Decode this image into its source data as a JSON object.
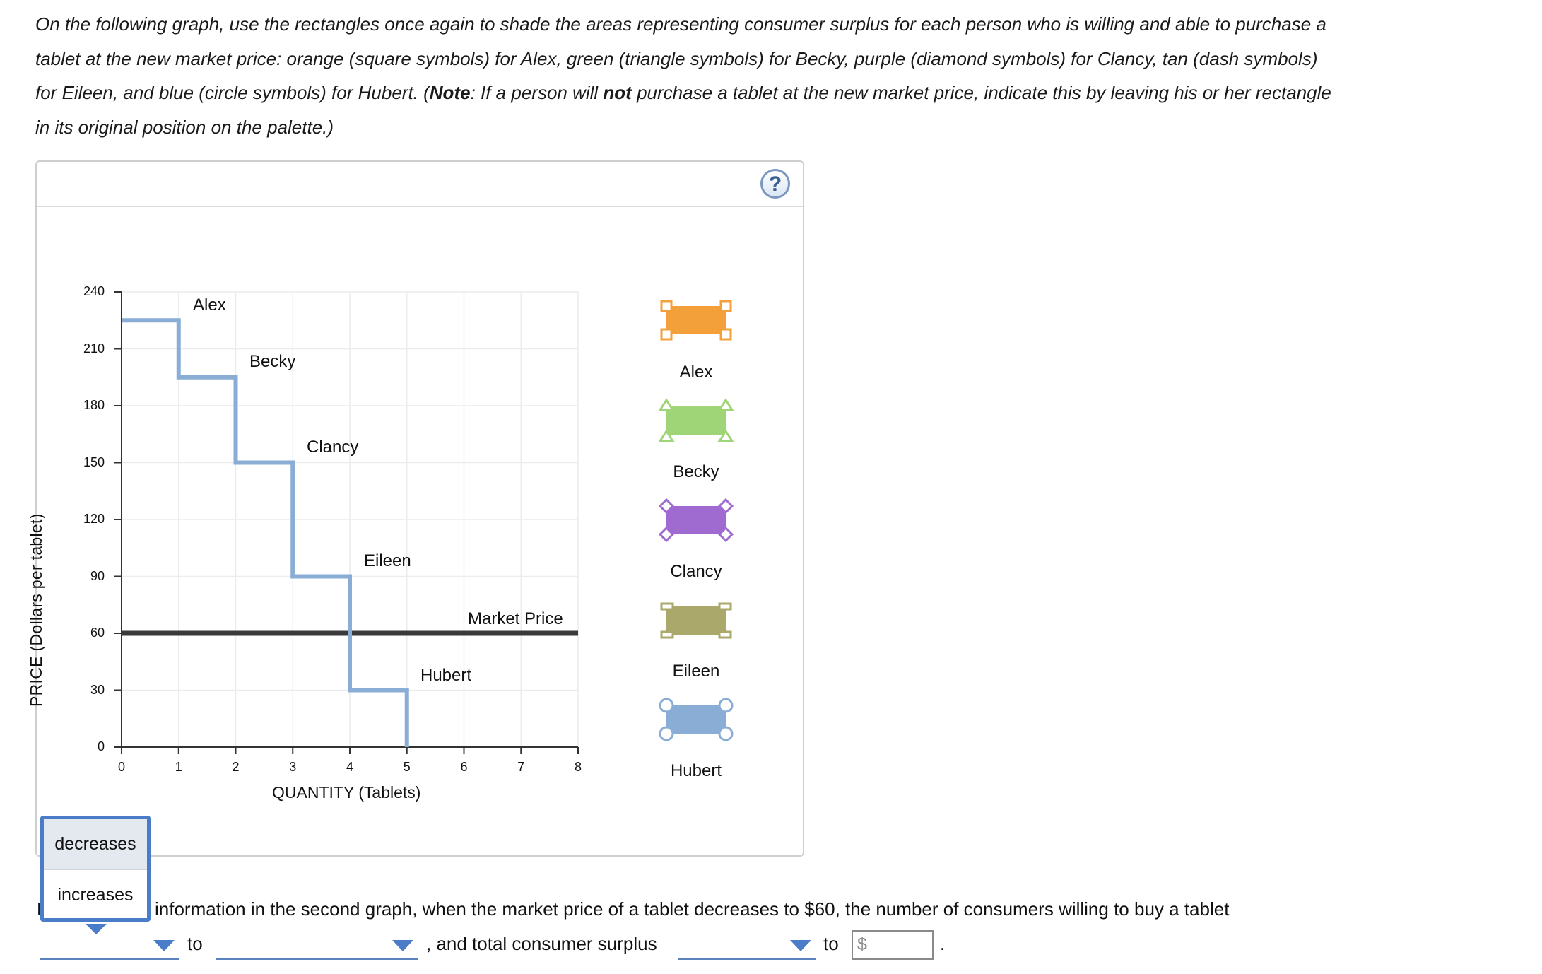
{
  "instructions": {
    "part1": "On the following graph, use the rectangles once again to shade the areas representing consumer surplus for each person who is willing and able to purchase a tablet at the new market price: orange (square symbols) for Alex, green (triangle symbols) for Becky, purple (diamond symbols) for Clancy, tan (dash symbols) for Eileen, and blue (circle symbols) for Hubert. (",
    "note_bold": "Note",
    "part2": ": If a person will ",
    "not_bold": "not",
    "part3": " purchase a tablet at the new market price, indicate this by leaving his or her rectangle in its original position on the palette.)"
  },
  "help_label": "?",
  "graph": {
    "y_axis_label": "PRICE (Dollars per tablet)",
    "x_axis_label": "QUANTITY (Tablets)",
    "y_ticks": [
      "0",
      "30",
      "60",
      "90",
      "120",
      "150",
      "180",
      "210",
      "240"
    ],
    "x_ticks": [
      "0",
      "1",
      "2",
      "3",
      "4",
      "5",
      "6",
      "7",
      "8"
    ],
    "market_price_label": "Market Price",
    "demand_labels": [
      "Alex",
      "Becky",
      "Clancy",
      "Eileen",
      "Hubert"
    ]
  },
  "chart_data": {
    "type": "line",
    "title": "",
    "xlabel": "QUANTITY (Tablets)",
    "ylabel": "PRICE (Dollars per tablet)",
    "xlim": [
      0,
      8
    ],
    "ylim": [
      0,
      240
    ],
    "series": [
      {
        "name": "Demand",
        "x": [
          0,
          1,
          1,
          2,
          2,
          3,
          3,
          4,
          4,
          5,
          5
        ],
        "y": [
          225,
          225,
          195,
          195,
          150,
          150,
          90,
          90,
          30,
          30,
          0
        ]
      },
      {
        "name": "Market Price",
        "x": [
          0,
          8
        ],
        "y": [
          60,
          60
        ]
      }
    ],
    "annotations": [
      "Alex",
      "Becky",
      "Clancy",
      "Eileen",
      "Hubert",
      "Market Price"
    ]
  },
  "palette": {
    "items": [
      {
        "name": "Alex",
        "color": "#f4a03a",
        "symbol": "square"
      },
      {
        "name": "Becky",
        "color": "#9fd477",
        "symbol": "triangle"
      },
      {
        "name": "Clancy",
        "color": "#a06bd0",
        "symbol": "diamond"
      },
      {
        "name": "Eileen",
        "color": "#aaa86a",
        "symbol": "dash"
      },
      {
        "name": "Hubert",
        "color": "#8aadd6",
        "symbol": "circle"
      }
    ]
  },
  "dropdown_menu": {
    "options": [
      "decreases",
      "increases"
    ],
    "selected": "decreases"
  },
  "question": {
    "text1": "information in the second graph, when the market price of a tablet decreases to $60, the number of consumers willing to buy a tablet",
    "hidden_char": "E",
    "to1": "to",
    "text2": ", and total consumer surplus",
    "to2": "to",
    "currency": "$",
    "period": "."
  }
}
